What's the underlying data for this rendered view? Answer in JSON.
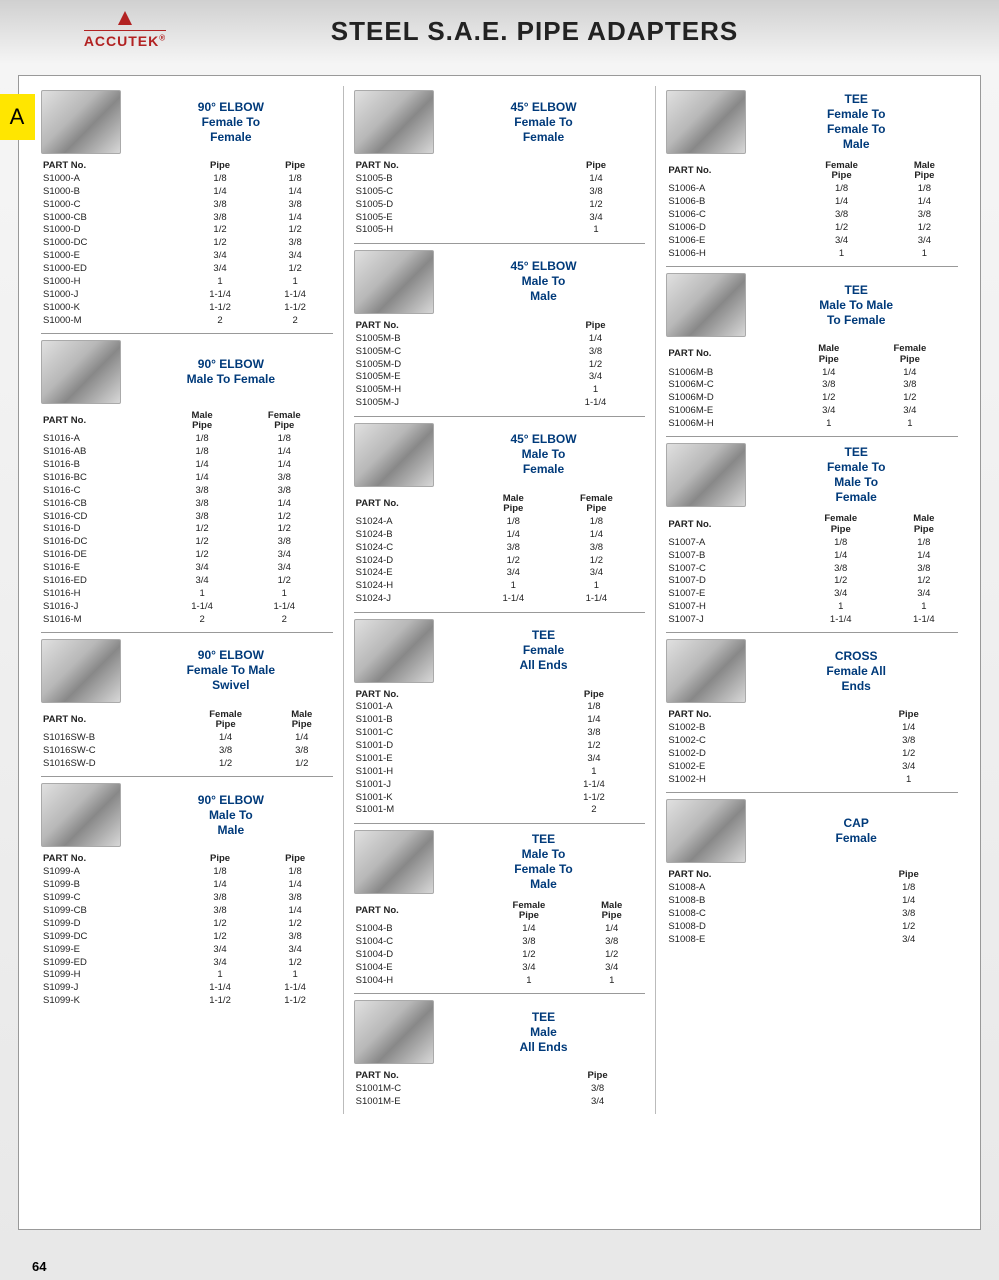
{
  "brand": "ACCUTEK",
  "brand_sup": "®",
  "title": "STEEL S.A.E. PIPE ADAPTERS",
  "tab": "A",
  "page_number": "64",
  "columns": [
    [
      {
        "title": "90° ELBOW\nFemale To\nFemale",
        "headers": [
          "PART No.",
          "Pipe",
          "Pipe"
        ],
        "rows": [
          [
            "S1000-A",
            "1/8",
            "1/8"
          ],
          [
            "S1000-B",
            "1/4",
            "1/4"
          ],
          [
            "S1000-C",
            "3/8",
            "3/8"
          ],
          [
            "S1000-CB",
            "3/8",
            "1/4"
          ],
          [
            "S1000-D",
            "1/2",
            "1/2"
          ],
          [
            "S1000-DC",
            "1/2",
            "3/8"
          ],
          [
            "S1000-E",
            "3/4",
            "3/4"
          ],
          [
            "S1000-ED",
            "3/4",
            "1/2"
          ],
          [
            "S1000-H",
            "1",
            "1"
          ],
          [
            "S1000-J",
            "1-1/4",
            "1-1/4"
          ],
          [
            "S1000-K",
            "1-1/2",
            "1-1/2"
          ],
          [
            "S1000-M",
            "2",
            "2"
          ]
        ]
      },
      {
        "title": "90° ELBOW\nMale To Female",
        "headers": [
          "PART No.",
          "Male\nPipe",
          "Female\nPipe"
        ],
        "rows": [
          [
            "S1016-A",
            "1/8",
            "1/8"
          ],
          [
            "S1016-AB",
            "1/8",
            "1/4"
          ],
          [
            "S1016-B",
            "1/4",
            "1/4"
          ],
          [
            "S1016-BC",
            "1/4",
            "3/8"
          ],
          [
            "S1016-C",
            "3/8",
            "3/8"
          ],
          [
            "S1016-CB",
            "3/8",
            "1/4"
          ],
          [
            "S1016-CD",
            "3/8",
            "1/2"
          ],
          [
            "S1016-D",
            "1/2",
            "1/2"
          ],
          [
            "S1016-DC",
            "1/2",
            "3/8"
          ],
          [
            "S1016-DE",
            "1/2",
            "3/4"
          ],
          [
            "S1016-E",
            "3/4",
            "3/4"
          ],
          [
            "S1016-ED",
            "3/4",
            "1/2"
          ],
          [
            "S1016-H",
            "1",
            "1"
          ],
          [
            "S1016-J",
            "1-1/4",
            "1-1/4"
          ],
          [
            "S1016-M",
            "2",
            "2"
          ]
        ]
      },
      {
        "title": "90° ELBOW\nFemale To Male\nSwivel",
        "headers": [
          "PART No.",
          "Female\nPipe",
          "Male\nPipe"
        ],
        "rows": [
          [
            "S1016SW-B",
            "1/4",
            "1/4"
          ],
          [
            "S1016SW-C",
            "3/8",
            "3/8"
          ],
          [
            "S1016SW-D",
            "1/2",
            "1/2"
          ]
        ]
      },
      {
        "title": "90° ELBOW\nMale To\nMale",
        "headers": [
          "PART No.",
          "Pipe",
          "Pipe"
        ],
        "rows": [
          [
            "S1099-A",
            "1/8",
            "1/8"
          ],
          [
            "S1099-B",
            "1/4",
            "1/4"
          ],
          [
            "S1099-C",
            "3/8",
            "3/8"
          ],
          [
            "S1099-CB",
            "3/8",
            "1/4"
          ],
          [
            "S1099-D",
            "1/2",
            "1/2"
          ],
          [
            "S1099-DC",
            "1/2",
            "3/8"
          ],
          [
            "S1099-E",
            "3/4",
            "3/4"
          ],
          [
            "S1099-ED",
            "3/4",
            "1/2"
          ],
          [
            "S1099-H",
            "1",
            "1"
          ],
          [
            "S1099-J",
            "1-1/4",
            "1-1/4"
          ],
          [
            "S1099-K",
            "1-1/2",
            "1-1/2"
          ]
        ]
      }
    ],
    [
      {
        "title": "45° ELBOW\nFemale To\nFemale",
        "headers": [
          "PART No.",
          "Pipe"
        ],
        "rows": [
          [
            "S1005-B",
            "1/4"
          ],
          [
            "S1005-C",
            "3/8"
          ],
          [
            "S1005-D",
            "1/2"
          ],
          [
            "S1005-E",
            "3/4"
          ],
          [
            "S1005-H",
            "1"
          ]
        ]
      },
      {
        "title": "45° ELBOW\nMale To\nMale",
        "headers": [
          "PART No.",
          "Pipe"
        ],
        "rows": [
          [
            "S1005M-B",
            "1/4"
          ],
          [
            "S1005M-C",
            "3/8"
          ],
          [
            "S1005M-D",
            "1/2"
          ],
          [
            "S1005M-E",
            "3/4"
          ],
          [
            "S1005M-H",
            "1"
          ],
          [
            "S1005M-J",
            "1-1/4"
          ]
        ]
      },
      {
        "title": "45° ELBOW\nMale To\nFemale",
        "headers": [
          "PART No.",
          "Male\nPipe",
          "Female\nPipe"
        ],
        "rows": [
          [
            "S1024-A",
            "1/8",
            "1/8"
          ],
          [
            "S1024-B",
            "1/4",
            "1/4"
          ],
          [
            "S1024-C",
            "3/8",
            "3/8"
          ],
          [
            "S1024-D",
            "1/2",
            "1/2"
          ],
          [
            "S1024-E",
            "3/4",
            "3/4"
          ],
          [
            "S1024-H",
            "1",
            "1"
          ],
          [
            "S1024-J",
            "1-1/4",
            "1-1/4"
          ]
        ]
      },
      {
        "title": "TEE\nFemale\nAll Ends",
        "headers": [
          "PART No.",
          "Pipe"
        ],
        "rows": [
          [
            "S1001-A",
            "1/8"
          ],
          [
            "S1001-B",
            "1/4"
          ],
          [
            "S1001-C",
            "3/8"
          ],
          [
            "S1001-D",
            "1/2"
          ],
          [
            "S1001-E",
            "3/4"
          ],
          [
            "S1001-H",
            "1"
          ],
          [
            "S1001-J",
            "1-1/4"
          ],
          [
            "S1001-K",
            "1-1/2"
          ],
          [
            "S1001-M",
            "2"
          ]
        ]
      },
      {
        "title": "TEE\nMale To\nFemale To\nMale",
        "headers": [
          "PART No.",
          "Female\nPipe",
          "Male\nPipe"
        ],
        "rows": [
          [
            "S1004-B",
            "1/4",
            "1/4"
          ],
          [
            "S1004-C",
            "3/8",
            "3/8"
          ],
          [
            "S1004-D",
            "1/2",
            "1/2"
          ],
          [
            "S1004-E",
            "3/4",
            "3/4"
          ],
          [
            "S1004-H",
            "1",
            "1"
          ]
        ]
      },
      {
        "title": "TEE\nMale\nAll Ends",
        "headers": [
          "PART No.",
          "Pipe"
        ],
        "rows": [
          [
            "S1001M-C",
            "3/8"
          ],
          [
            "S1001M-E",
            "3/4"
          ]
        ]
      }
    ],
    [
      {
        "title": "TEE\nFemale To\nFemale To\nMale",
        "headers": [
          "PART No.",
          "Female\nPipe",
          "Male\nPipe"
        ],
        "rows": [
          [
            "S1006-A",
            "1/8",
            "1/8"
          ],
          [
            "S1006-B",
            "1/4",
            "1/4"
          ],
          [
            "S1006-C",
            "3/8",
            "3/8"
          ],
          [
            "S1006-D",
            "1/2",
            "1/2"
          ],
          [
            "S1006-E",
            "3/4",
            "3/4"
          ],
          [
            "S1006-H",
            "1",
            "1"
          ]
        ]
      },
      {
        "title": "TEE\nMale To Male\nTo Female",
        "headers": [
          "PART No.",
          "Male\nPipe",
          "Female\nPipe"
        ],
        "rows": [
          [
            "S1006M-B",
            "1/4",
            "1/4"
          ],
          [
            "S1006M-C",
            "3/8",
            "3/8"
          ],
          [
            "S1006M-D",
            "1/2",
            "1/2"
          ],
          [
            "S1006M-E",
            "3/4",
            "3/4"
          ],
          [
            "S1006M-H",
            "1",
            "1"
          ]
        ]
      },
      {
        "title": "TEE\nFemale To\nMale To\nFemale",
        "headers": [
          "PART No.",
          "Female\nPipe",
          "Male\nPipe"
        ],
        "rows": [
          [
            "S1007-A",
            "1/8",
            "1/8"
          ],
          [
            "S1007-B",
            "1/4",
            "1/4"
          ],
          [
            "S1007-C",
            "3/8",
            "3/8"
          ],
          [
            "S1007-D",
            "1/2",
            "1/2"
          ],
          [
            "S1007-E",
            "3/4",
            "3/4"
          ],
          [
            "S1007-H",
            "1",
            "1"
          ],
          [
            "S1007-J",
            "1-1/4",
            "1-1/4"
          ]
        ]
      },
      {
        "title": "CROSS\nFemale All\nEnds",
        "headers": [
          "PART No.",
          "Pipe"
        ],
        "rows": [
          [
            "S1002-B",
            "1/4"
          ],
          [
            "S1002-C",
            "3/8"
          ],
          [
            "S1002-D",
            "1/2"
          ],
          [
            "S1002-E",
            "3/4"
          ],
          [
            "S1002-H",
            "1"
          ]
        ]
      },
      {
        "title": "CAP\nFemale",
        "headers": [
          "PART No.",
          "Pipe"
        ],
        "rows": [
          [
            "S1008-A",
            "1/8"
          ],
          [
            "S1008-B",
            "1/4"
          ],
          [
            "S1008-C",
            "3/8"
          ],
          [
            "S1008-D",
            "1/2"
          ],
          [
            "S1008-E",
            "3/4"
          ]
        ]
      }
    ]
  ]
}
